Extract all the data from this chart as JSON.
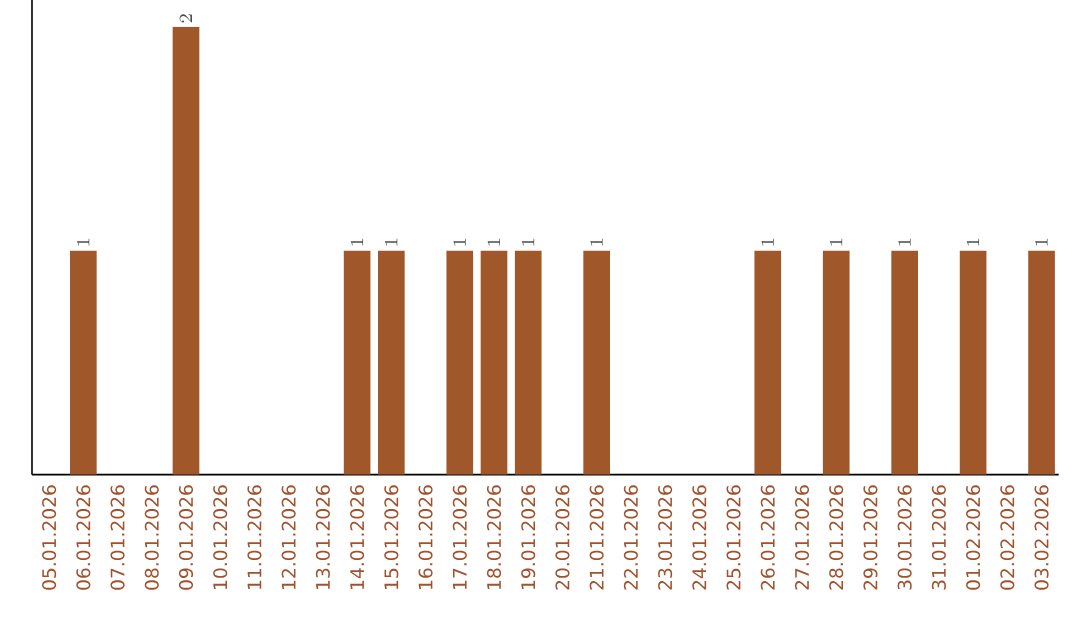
{
  "chart_data": {
    "type": "bar",
    "categories": [
      "05.01.2026",
      "06.01.2026",
      "07.01.2026",
      "08.01.2026",
      "09.01.2026",
      "10.01.2026",
      "11.01.2026",
      "12.01.2026",
      "13.01.2026",
      "14.01.2026",
      "15.01.2026",
      "16.01.2026",
      "17.01.2026",
      "18.01.2026",
      "19.01.2026",
      "20.01.2026",
      "21.01.2026",
      "22.01.2026",
      "23.01.2026",
      "24.01.2026",
      "25.01.2026",
      "26.01.2026",
      "27.01.2026",
      "28.01.2026",
      "29.01.2026",
      "30.01.2026",
      "31.01.2026",
      "01.02.2026",
      "02.02.2026",
      "03.02.2026"
    ],
    "values": [
      null,
      1,
      null,
      null,
      2,
      null,
      null,
      null,
      null,
      1,
      1,
      null,
      1,
      1,
      1,
      null,
      1,
      null,
      null,
      null,
      null,
      1,
      null,
      1,
      null,
      1,
      null,
      1,
      null,
      1
    ],
    "color": "#a0582a",
    "data_labels": true,
    "tick_labels": "x"
  }
}
